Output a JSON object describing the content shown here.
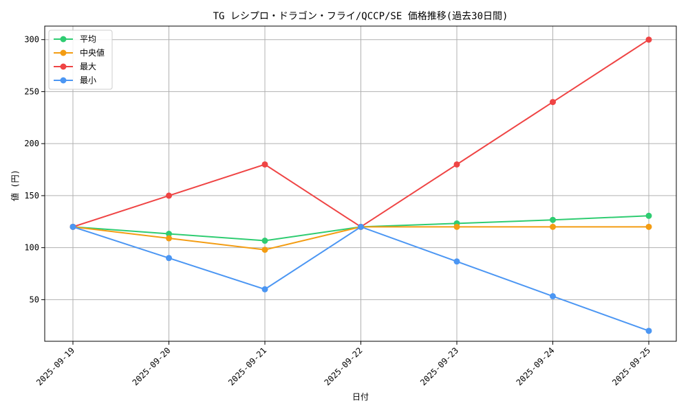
{
  "chart_data": {
    "type": "line",
    "title": "TG レシプロ・ドラゴン・フライ/QCCP/SE 価格推移(過去30日間)",
    "xlabel": "日付",
    "ylabel": "値 (円)",
    "categories": [
      "2025-09-19",
      "2025-09-20",
      "2025-09-21",
      "2025-09-22",
      "2025-09-23",
      "2025-09-24",
      "2025-09-25"
    ],
    "ylim": [
      10,
      313
    ],
    "yticks": [
      50,
      100,
      150,
      200,
      250,
      300
    ],
    "grid": true,
    "legend_position": "top-left",
    "series": [
      {
        "name": "平均",
        "color": "#2ecc71",
        "values": [
          120,
          113.3,
          106.7,
          120,
          123.3,
          126.7,
          130.6
        ]
      },
      {
        "name": "中央値",
        "color": "#f39c12",
        "values": [
          120,
          109,
          98,
          120,
          120,
          120,
          120
        ]
      },
      {
        "name": "最大",
        "color": "#ef4444",
        "values": [
          120,
          150,
          180,
          120,
          180,
          240,
          300
        ]
      },
      {
        "name": "最小",
        "color": "#4b96f3",
        "values": [
          120,
          90,
          60,
          120,
          86.7,
          53.3,
          20
        ]
      }
    ]
  }
}
